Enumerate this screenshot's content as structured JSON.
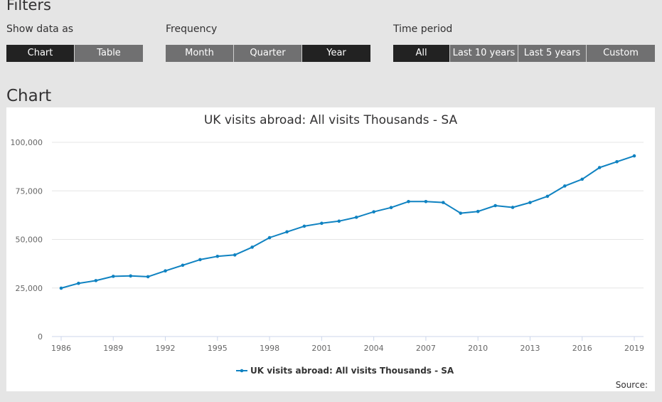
{
  "filters": {
    "heading": "Filters",
    "show_data_as": {
      "label": "Show data as",
      "options": [
        "Chart",
        "Table"
      ],
      "selected": "Chart"
    },
    "frequency": {
      "label": "Frequency",
      "options": [
        "Month",
        "Quarter",
        "Year"
      ],
      "selected": "Year"
    },
    "time_period": {
      "label": "Time period",
      "options": [
        "All",
        "Last 10 years",
        "Last 5 years",
        "Custom"
      ],
      "selected": "All"
    }
  },
  "chart_section": {
    "heading": "Chart",
    "source_label": "Source:"
  },
  "colors": {
    "series": "#0f82c1",
    "active_button": "#222222",
    "inactive_button": "#707071"
  },
  "chart_data": {
    "type": "line",
    "title": "UK visits abroad: All visits Thousands - SA",
    "xlabel": "",
    "ylabel": "",
    "ylim": [
      0,
      100000
    ],
    "xlim": [
      1986,
      2019
    ],
    "y_ticks": [
      0,
      25000,
      50000,
      75000,
      100000
    ],
    "y_tick_labels": [
      "0",
      "25,000",
      "50,000",
      "75,000",
      "100,000"
    ],
    "x_ticks": [
      1986,
      1989,
      1992,
      1995,
      1998,
      2001,
      2004,
      2007,
      2010,
      2013,
      2016,
      2019
    ],
    "x_tick_labels": [
      "1986",
      "1989",
      "1992",
      "1995",
      "1998",
      "2001",
      "2004",
      "2007",
      "2010",
      "2013",
      "2016",
      "2019"
    ],
    "grid": "horizontal",
    "legend_position": "bottom",
    "x": [
      1986,
      1987,
      1988,
      1989,
      1990,
      1991,
      1992,
      1993,
      1994,
      1995,
      1996,
      1997,
      1998,
      1999,
      2000,
      2001,
      2002,
      2003,
      2004,
      2005,
      2006,
      2007,
      2008,
      2009,
      2010,
      2011,
      2012,
      2013,
      2014,
      2015,
      2016,
      2017,
      2018,
      2019
    ],
    "series": [
      {
        "name": "UK visits abroad: All visits Thousands - SA",
        "values": [
          24900,
          27400,
          28800,
          31000,
          31200,
          30800,
          33800,
          36700,
          39600,
          41300,
          42000,
          46000,
          50900,
          53900,
          56800,
          58300,
          59400,
          61400,
          64200,
          66400,
          69500,
          69500,
          69000,
          63500,
          64400,
          67400,
          66500,
          69000,
          72200,
          77500,
          81000,
          87000,
          90000,
          93000
        ]
      }
    ]
  }
}
